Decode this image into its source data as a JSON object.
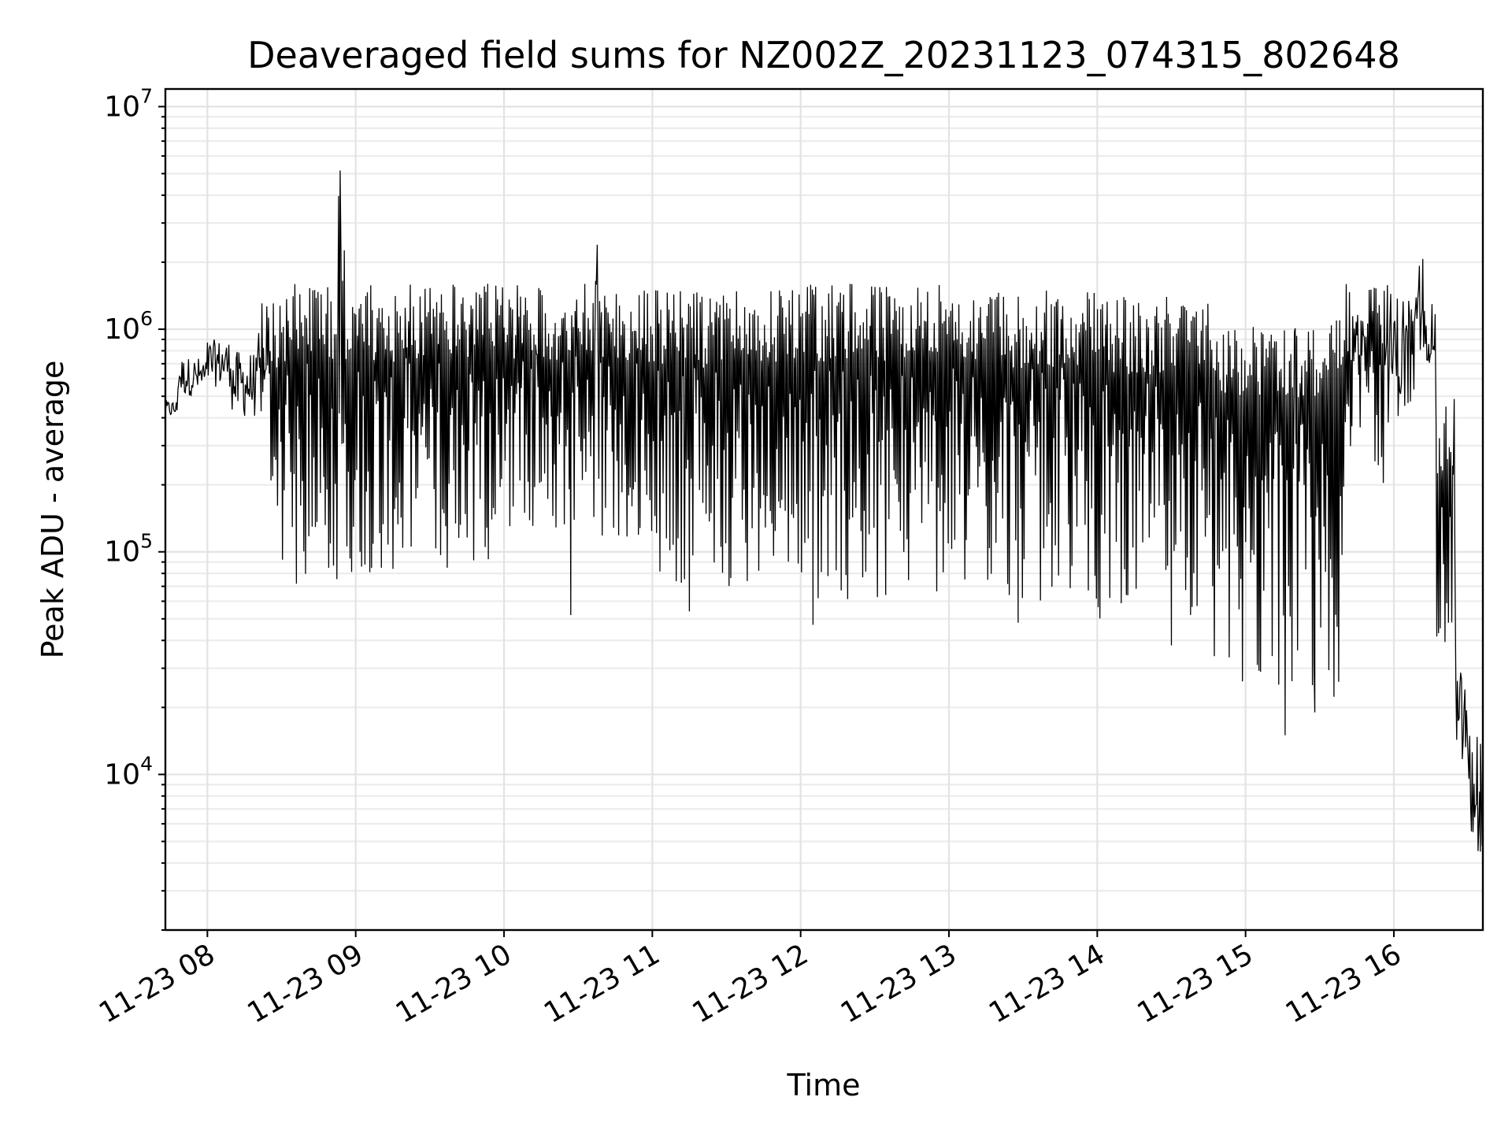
{
  "chart_data": {
    "type": "line",
    "title": "Deaveraged field sums for NZ002Z_20231123_074315_802648",
    "xlabel": "Time",
    "ylabel": "Peak ADU - average",
    "yscale": "log",
    "ylim": [
      2000,
      12000000
    ],
    "xlim": [
      "2023-11-23 07:43",
      "2023-11-23 16:36"
    ],
    "grid": true,
    "x_ticks": [
      {
        "value": "2023-11-23 08:00",
        "label": "11-23 08"
      },
      {
        "value": "2023-11-23 09:00",
        "label": "11-23 09"
      },
      {
        "value": "2023-11-23 10:00",
        "label": "11-23 10"
      },
      {
        "value": "2023-11-23 11:00",
        "label": "11-23 11"
      },
      {
        "value": "2023-11-23 12:00",
        "label": "11-23 12"
      },
      {
        "value": "2023-11-23 13:00",
        "label": "11-23 13"
      },
      {
        "value": "2023-11-23 14:00",
        "label": "11-23 14"
      },
      {
        "value": "2023-11-23 15:00",
        "label": "11-23 15"
      },
      {
        "value": "2023-11-23 16:00",
        "label": "11-23 16"
      }
    ],
    "y_ticks": [
      {
        "value": 10000,
        "base": "10",
        "exp": "4"
      },
      {
        "value": 100000,
        "base": "10",
        "exp": "5"
      },
      {
        "value": 1000000,
        "base": "10",
        "exp": "6"
      },
      {
        "value": 10000000,
        "base": "10",
        "exp": "7"
      }
    ],
    "series": [
      {
        "color": "#000000",
        "description": "approximate trace of peak values per time segment",
        "segments": [
          {
            "start": "2023-11-23 07:43",
            "end": "2023-11-23 07:48",
            "low": 400000,
            "high": 480000
          },
          {
            "start": "2023-11-23 07:48",
            "end": "2023-11-23 08:00",
            "low": 500000,
            "high": 750000
          },
          {
            "start": "2023-11-23 08:00",
            "end": "2023-11-23 08:10",
            "low": 550000,
            "high": 900000
          },
          {
            "start": "2023-11-23 08:10",
            "end": "2023-11-23 08:20",
            "low": 400000,
            "high": 800000
          },
          {
            "start": "2023-11-23 08:20",
            "end": "2023-11-23 08:30",
            "low": 150000,
            "high": 1400000
          },
          {
            "start": "2023-11-23 08:30",
            "end": "2023-11-23 08:53",
            "low": 70000,
            "high": 1600000
          },
          {
            "start": "2023-11-23 08:53",
            "end": "2023-11-23 08:54",
            "low": 80000,
            "high": 8000000
          },
          {
            "start": "2023-11-23 08:54",
            "end": "2023-11-23 08:56",
            "low": 80000,
            "high": 3200000
          },
          {
            "start": "2023-11-23 08:56",
            "end": "2023-11-23 09:10",
            "low": 80000,
            "high": 1600000
          },
          {
            "start": "2023-11-23 09:10",
            "end": "2023-11-23 10:00",
            "low": 80000,
            "high": 1600000
          },
          {
            "start": "2023-11-23 10:00",
            "end": "2023-11-23 10:37",
            "low": 120000,
            "high": 1600000
          },
          {
            "start": "2023-11-23 10:37",
            "end": "2023-11-23 10:38",
            "low": 300000,
            "high": 3300000
          },
          {
            "start": "2023-11-23 10:38",
            "end": "2023-11-23 11:00",
            "low": 100000,
            "high": 1500000
          },
          {
            "start": "2023-11-23 11:00",
            "end": "2023-11-23 12:00",
            "low": 70000,
            "high": 1500000
          },
          {
            "start": "2023-11-23 12:00",
            "end": "2023-11-23 13:00",
            "low": 60000,
            "high": 1600000
          },
          {
            "start": "2023-11-23 13:00",
            "end": "2023-11-23 14:00",
            "low": 60000,
            "high": 1500000
          },
          {
            "start": "2023-11-23 14:00",
            "end": "2023-11-23 14:45",
            "low": 45000,
            "high": 1400000
          },
          {
            "start": "2023-11-23 14:45",
            "end": "2023-11-23 15:20",
            "low": 25000,
            "high": 1100000
          },
          {
            "start": "2023-11-23 15:20",
            "end": "2023-11-23 15:40",
            "low": 22000,
            "high": 1100000
          },
          {
            "start": "2023-11-23 15:40",
            "end": "2023-11-23 15:58",
            "low": 200000,
            "high": 1600000
          },
          {
            "start": "2023-11-23 15:58",
            "end": "2023-11-23 16:10",
            "low": 400000,
            "high": 1500000
          },
          {
            "start": "2023-11-23 16:10",
            "end": "2023-11-23 16:12",
            "low": 700000,
            "high": 2300000
          },
          {
            "start": "2023-11-23 16:12",
            "end": "2023-11-23 16:17",
            "low": 700000,
            "high": 1300000
          },
          {
            "start": "2023-11-23 16:17",
            "end": "2023-11-23 16:25",
            "low": 30000,
            "high": 500000
          },
          {
            "start": "2023-11-23 16:25",
            "end": "2023-11-23 16:30",
            "low": 10000,
            "high": 30000
          },
          {
            "start": "2023-11-23 16:30",
            "end": "2023-11-23 16:36",
            "low": 4500,
            "high": 16000
          }
        ],
        "dips": [
          {
            "time": "2023-11-23 08:36",
            "value": 72000
          },
          {
            "time": "2023-11-23 10:27",
            "value": 52000
          },
          {
            "time": "2023-11-23 11:15",
            "value": 54000
          },
          {
            "time": "2023-11-23 12:05",
            "value": 47000
          },
          {
            "time": "2023-11-23 13:28",
            "value": 48000
          },
          {
            "time": "2023-11-23 14:30",
            "value": 38000
          },
          {
            "time": "2023-11-23 15:16",
            "value": 15000
          },
          {
            "time": "2023-11-23 15:28",
            "value": 19000
          },
          {
            "time": "2023-11-23 16:35",
            "value": 4500
          }
        ]
      }
    ]
  }
}
